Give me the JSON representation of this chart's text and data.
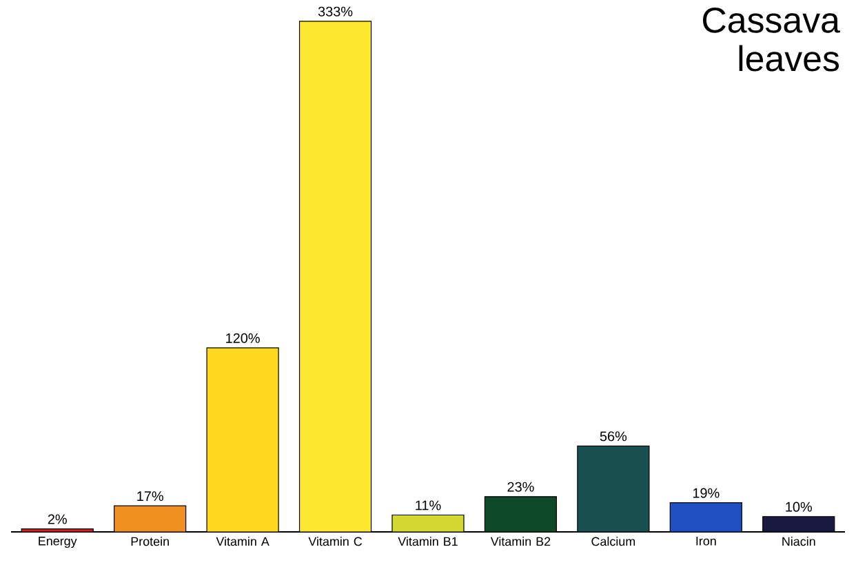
{
  "chart_data": {
    "type": "bar",
    "title": "Cassava leaves",
    "categories": [
      "Energy",
      "Protein",
      "Vitamin A",
      "Vitamin C",
      "Vitamin B1",
      "Vitamin B2",
      "Calcium",
      "Iron",
      "Niacin"
    ],
    "values": [
      2,
      17,
      120,
      333,
      11,
      23,
      56,
      19,
      10
    ],
    "value_labels": [
      "2%",
      "17%",
      "120%",
      "333%",
      "11%",
      "23%",
      "56%",
      "19%",
      "10%"
    ],
    "colors": [
      "#d42020",
      "#f09020",
      "#ffd820",
      "#ffe830",
      "#d4d830",
      "#0e4a2a",
      "#1a5050",
      "#2050c0",
      "#1a1a40"
    ]
  }
}
